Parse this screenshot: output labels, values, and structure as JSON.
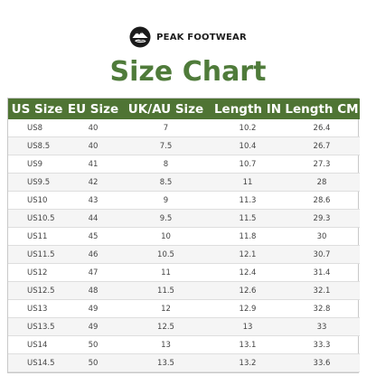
{
  "brand": {
    "name": "PEAK FOOTWEAR",
    "logo_icon": "mountain-shoe-emblem-icon"
  },
  "title": "Size Chart",
  "colors": {
    "title": "#4f7b3a",
    "header_bg": "#4f7434",
    "header_text": "#ffffff",
    "row_alt": "#f5f5f5"
  },
  "table": {
    "headers": [
      "US Size",
      "EU Size",
      "UK/AU Size",
      "Length IN",
      "Length CM"
    ],
    "rows": [
      [
        "US8",
        "40",
        "7",
        "10.2",
        "26.4"
      ],
      [
        "US8.5",
        "40",
        "7.5",
        "10.4",
        "26.7"
      ],
      [
        "US9",
        "41",
        "8",
        "10.7",
        "27.3"
      ],
      [
        "US9.5",
        "42",
        "8.5",
        "11",
        "28"
      ],
      [
        "US10",
        "43",
        "9",
        "11.3",
        "28.6"
      ],
      [
        "US10.5",
        "44",
        "9.5",
        "11.5",
        "29.3"
      ],
      [
        "US11",
        "45",
        "10",
        "11.8",
        "30"
      ],
      [
        "US11.5",
        "46",
        "10.5",
        "12.1",
        "30.7"
      ],
      [
        "US12",
        "47",
        "11",
        "12.4",
        "31.4"
      ],
      [
        "US12.5",
        "48",
        "11.5",
        "12.6",
        "32.1"
      ],
      [
        "US13",
        "49",
        "12",
        "12.9",
        "32.8"
      ],
      [
        "US13.5",
        "49",
        "12.5",
        "13",
        "33"
      ],
      [
        "US14",
        "50",
        "13",
        "13.1",
        "33.3"
      ],
      [
        "US14.5",
        "50",
        "13.5",
        "13.2",
        "33.6"
      ]
    ]
  }
}
